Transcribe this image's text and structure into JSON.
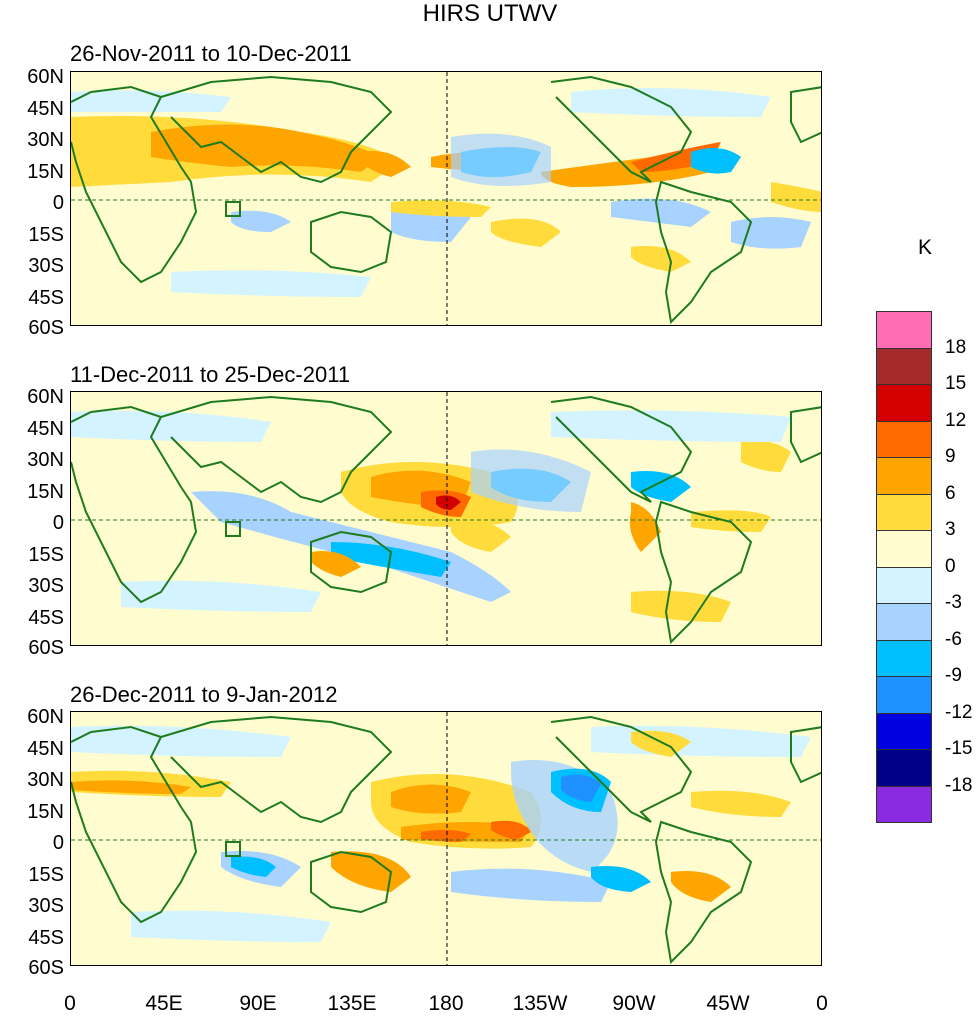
{
  "title": "HIRS UTWV",
  "panels": [
    {
      "subtitle": "26-Nov-2011 to 10-Dec-2011"
    },
    {
      "subtitle": "11-Dec-2011 to 25-Dec-2011"
    },
    {
      "subtitle": "26-Dec-2011 to 9-Jan-2012"
    }
  ],
  "lat_labels": [
    "60N",
    "45N",
    "30N",
    "15N",
    "0",
    "15S",
    "30S",
    "45S",
    "60S"
  ],
  "lon_labels": [
    "0",
    "45E",
    "90E",
    "135E",
    "180",
    "135W",
    "90W",
    "45W",
    "0"
  ],
  "colorbar": {
    "unit": "K",
    "labels": [
      "18",
      "15",
      "12",
      "9",
      "6",
      "3",
      "0",
      "-3",
      "-6",
      "-9",
      "-12",
      "-15",
      "-18"
    ],
    "colors": [
      "#ff6eb4",
      "#a52a2a",
      "#d40000",
      "#ff6a00",
      "#ffa500",
      "#ffdc3c",
      "#fffccf",
      "#d2f3ff",
      "#a8d2ff",
      "#00bfff",
      "#1e90ff",
      "#0000e0",
      "#00008b",
      "#8a2be2"
    ]
  },
  "coast_color": "#1e7b1e",
  "land_color": "#1e7b1e"
}
